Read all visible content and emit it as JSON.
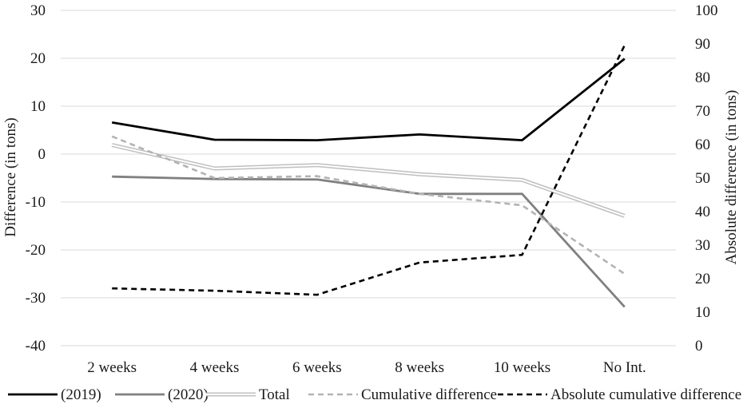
{
  "chart_data": {
    "type": "line",
    "categories": [
      "2 weeks",
      "4 weeks",
      "6 weeks",
      "8 weeks",
      "10 weeks",
      "No Int."
    ],
    "y_left": {
      "label": "Difference (in tons)",
      "ticks": [
        30,
        20,
        10,
        0,
        -10,
        -20,
        -30,
        -40
      ],
      "tick_labels": [
        "30",
        "20",
        "10",
        "0",
        "-10",
        "-20",
        "-30",
        "-40"
      ],
      "lim": [
        -40,
        30
      ]
    },
    "y_right": {
      "label": "Absolute difference (in tons)",
      "ticks": [
        100,
        90,
        80,
        70,
        60,
        50,
        40,
        30,
        20,
        10,
        0
      ],
      "tick_labels": [
        "100",
        "90",
        "80",
        "70",
        "60",
        "50",
        "40",
        "30",
        "20",
        "10",
        "0"
      ],
      "lim": [
        0,
        100
      ]
    },
    "grid": true,
    "legend_position": "bottom",
    "series": [
      {
        "name": "(2019)",
        "axis": "left",
        "style": "solid",
        "color": "#000000",
        "values": [
          6.6,
          3.0,
          2.9,
          4.1,
          2.9,
          19.9
        ]
      },
      {
        "name": "(2020)",
        "axis": "left",
        "style": "solid",
        "color": "#808080",
        "values": [
          -4.7,
          -5.2,
          -5.3,
          -8.3,
          -8.3,
          -31.9
        ]
      },
      {
        "name": "Total",
        "axis": "left",
        "style": "double",
        "color": "#bfbfbf",
        "values": [
          1.9,
          -3.0,
          -2.3,
          -4.2,
          -5.4,
          -12.9
        ]
      },
      {
        "name": "Cumulative difference",
        "axis": "left",
        "style": "dashed",
        "color": "#b3b3b3",
        "values": [
          3.7,
          -5.0,
          -4.6,
          -8.3,
          -10.7,
          -25.0
        ]
      },
      {
        "name": "Absolute cumulative difference",
        "axis": "right",
        "style": "dashed",
        "color": "#000000",
        "values": [
          17.1,
          16.4,
          15.2,
          24.8,
          27.1,
          89.6
        ]
      }
    ]
  }
}
